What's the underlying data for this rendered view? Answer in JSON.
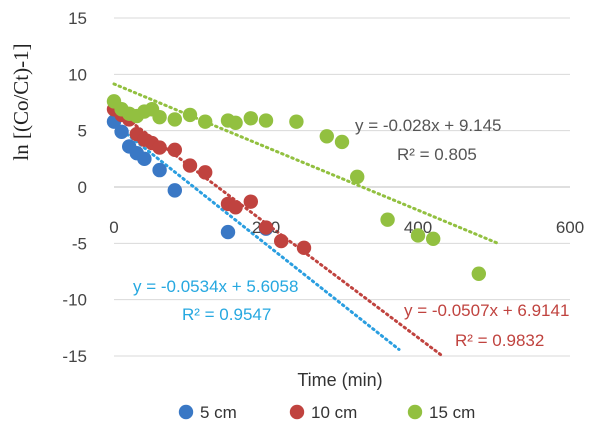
{
  "chart_data": {
    "type": "scatter",
    "title": "",
    "xlabel": "Time (min)",
    "ylabel": "ln [(Co/Ct)-1]",
    "xlim": [
      0,
      600
    ],
    "ylim": [
      -15,
      15
    ],
    "x_ticks": [
      "0",
      "200",
      "400",
      "600"
    ],
    "y_ticks": [
      "15",
      "10",
      "5",
      "0",
      "-5",
      "-10",
      "-15"
    ],
    "grid": "horizontal",
    "legend_position": "bottom",
    "series": [
      {
        "name": "5 cm",
        "color": "#3a78c5",
        "x": [
          0,
          10,
          20,
          30,
          40,
          60,
          80,
          150,
          200
        ],
        "y": [
          5.8,
          4.9,
          3.6,
          3.0,
          2.5,
          1.5,
          -0.3,
          -4.0,
          -3.7
        ],
        "trendline": {
          "slope": -0.0534,
          "intercept": 5.6058,
          "equation": "y = -0.0534x + 5.6058",
          "r2": "R² = 0.9547",
          "color": "#2a9ee0",
          "label_color": "#26a8e0"
        }
      },
      {
        "name": "10 cm",
        "color": "#c0433f",
        "x": [
          0,
          10,
          20,
          30,
          40,
          50,
          60,
          80,
          100,
          120,
          150,
          160,
          180,
          200,
          220,
          250
        ],
        "y": [
          6.9,
          6.4,
          6.0,
          4.7,
          4.2,
          3.9,
          3.5,
          3.3,
          1.9,
          1.3,
          -1.5,
          -1.8,
          -1.3,
          -3.6,
          -4.8,
          -5.4
        ],
        "trendline": {
          "slope": -0.0507,
          "intercept": 6.9141,
          "equation": "y = -0.0507x + 6.9141",
          "r2": "R² = 0.9832",
          "color": "#c0433f",
          "label_color": "#c0433f"
        }
      },
      {
        "name": "15 cm",
        "color": "#92c040",
        "x": [
          0,
          10,
          20,
          30,
          40,
          50,
          60,
          80,
          100,
          120,
          150,
          160,
          180,
          200,
          240,
          280,
          300,
          320,
          360,
          400,
          420,
          480
        ],
        "y": [
          7.6,
          6.9,
          6.5,
          6.3,
          6.7,
          6.9,
          6.2,
          6.0,
          6.4,
          5.8,
          5.9,
          5.7,
          6.1,
          5.9,
          5.8,
          4.5,
          4.0,
          0.9,
          -2.9,
          -4.3,
          -4.6,
          -7.7
        ],
        "trendline": {
          "slope": -0.028,
          "intercept": 9.145,
          "equation": "y = -0.028x + 9.145",
          "r2": "R² = 0.805",
          "color": "#92c040",
          "label_color": "#555555"
        }
      }
    ]
  }
}
